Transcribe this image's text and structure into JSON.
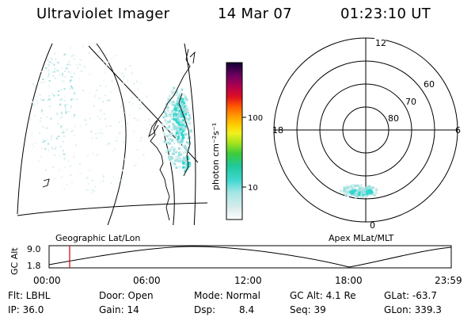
{
  "header": {
    "instrument": "Ultraviolet Imager",
    "date": "14 Mar 07",
    "time": "01:23:10 UT"
  },
  "colorbar": {
    "unit_label": "photon cm⁻²s⁻¹",
    "ticks": [
      "100",
      "10"
    ]
  },
  "polar_plot": {
    "mlt_labels": {
      "top": "12",
      "left": "18",
      "right": "6",
      "bottom": "0"
    },
    "lat_labels": [
      "60",
      "70",
      "80"
    ]
  },
  "timeline": {
    "left_title": "Geographic Lat/Lon",
    "right_title": "Apex MLat/MLT",
    "y_title": "GC Alt",
    "y_max": "9.0",
    "y_min": "1.8",
    "time_ticks": [
      "00:00",
      "06:00",
      "12:00",
      "18:00",
      "23:59"
    ],
    "marker_time": "01:23"
  },
  "info": {
    "filter": "Flt: LBHL",
    "door": "Door: Open",
    "mode": "Mode: Normal",
    "gc_alt": "GC Alt: 4.1 Re",
    "glat": "GLat: -63.7",
    "ip": "IP: 36.0",
    "gain": "Gain: 14",
    "dsp_label": "Dsp:",
    "dsp_value": "8.4",
    "seq": "Seq: 39",
    "glon": "GLon: 339.3"
  },
  "colors": {
    "aurora_light": "#d8eeee",
    "aurora_mid": "#9fe0e0",
    "aurora_bright": "#2fd8cf",
    "marker": "#d40000"
  }
}
